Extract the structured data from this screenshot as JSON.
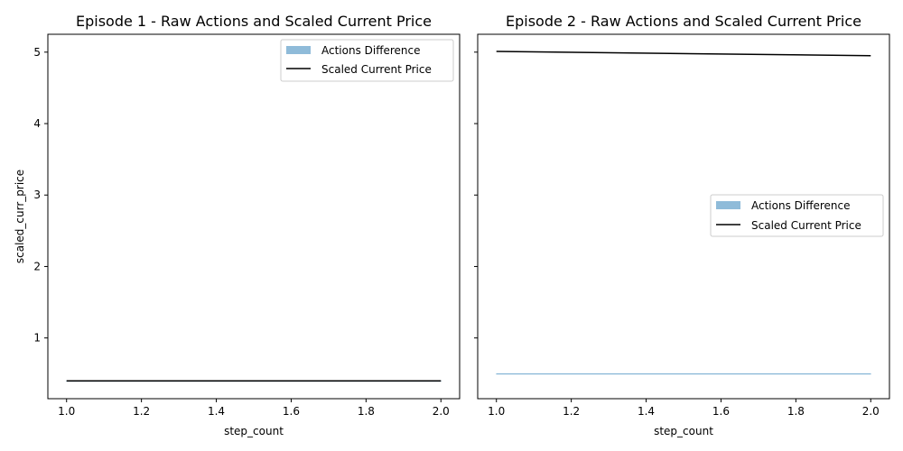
{
  "chart_data": [
    {
      "type": "line",
      "title": "Episode 1 - Raw Actions and Scaled Current Price",
      "xlabel": "step_count",
      "ylabel": "scaled_curr_price",
      "xlim": [
        0.95,
        2.05
      ],
      "ylim": [
        0.15,
        5.25
      ],
      "xticks": [
        "1.0",
        "1.2",
        "1.4",
        "1.6",
        "1.8",
        "2.0"
      ],
      "yticks": [
        "1",
        "2",
        "3",
        "4",
        "5"
      ],
      "legend": {
        "position": "upper right",
        "entries": [
          "Actions Difference",
          "Scaled Current Price"
        ]
      },
      "series": [
        {
          "name": "Scaled Current Price",
          "x": [
            1.0,
            2.0
          ],
          "y": [
            0.4,
            0.4
          ],
          "color": "#000000"
        },
        {
          "name": "Actions Difference",
          "x": [
            1.0,
            2.0
          ],
          "y": [
            0.4,
            0.4
          ],
          "color": "#1f77b4"
        }
      ]
    },
    {
      "type": "line",
      "title": "Episode 2 - Raw Actions and Scaled Current Price",
      "xlabel": "step_count",
      "ylabel": "",
      "xlim": [
        0.95,
        2.05
      ],
      "ylim": [
        0.15,
        5.25
      ],
      "xticks": [
        "1.0",
        "1.2",
        "1.4",
        "1.6",
        "1.8",
        "2.0"
      ],
      "yticks": [
        "1",
        "2",
        "3",
        "4",
        "5"
      ],
      "legend": {
        "position": "center right",
        "entries": [
          "Actions Difference",
          "Scaled Current Price"
        ]
      },
      "series": [
        {
          "name": "Scaled Current Price",
          "x": [
            1.0,
            2.0
          ],
          "y": [
            5.01,
            4.95
          ],
          "color": "#000000"
        },
        {
          "name": "Actions Difference",
          "x": [
            1.0,
            2.0
          ],
          "y": [
            0.5,
            0.5
          ],
          "color": "#1f77b4"
        }
      ]
    }
  ]
}
